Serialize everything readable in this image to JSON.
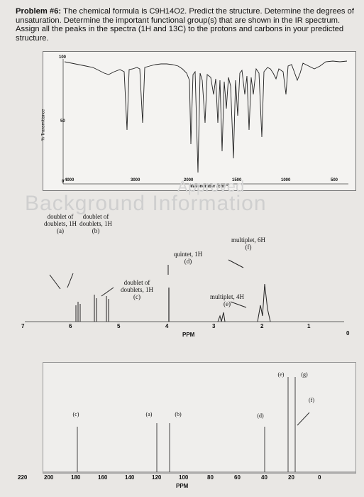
{
  "problem": {
    "label": "Problem #6:",
    "text": "The chemical formula is C9H14O2. Predict the structure. Determine the degrees of unsaturation. Determine the important functional group(s) that are shown in the IR spectrum. Assign all the peaks in the spectra (1H and 13C) to the protons and carbons in your predicted structure."
  },
  "ir": {
    "ylabel": "% Transmittance",
    "xlabel": "Wavenumber (cm⁻¹)",
    "yticks": [
      "100",
      "50",
      "0"
    ],
    "xticks": [
      "4000",
      "3000",
      "2000",
      "1500",
      "1000",
      "500"
    ]
  },
  "watermark": {
    "text": "Background Information",
    "sub": "Approved"
  },
  "hnmr": {
    "xlabel": "PPM",
    "ticks": [
      "7",
      "6",
      "5",
      "4",
      "3",
      "2",
      "1",
      "0"
    ],
    "peaks": [
      {
        "label": "doublet of doublets, 1H",
        "tag": "(a)"
      },
      {
        "label": "doublet of doublets, 1H",
        "tag": "(b)"
      },
      {
        "label": "doublet of doublets, 1H",
        "tag": "(c)"
      },
      {
        "label": "quintet, 1H",
        "tag": "(d)"
      },
      {
        "label": "multiplet, 4H",
        "tag": "(e)"
      },
      {
        "label": "multiplet, 6H",
        "tag": "(f)"
      }
    ]
  },
  "cnmr": {
    "xlabel": "PPM",
    "ticks": [
      "220",
      "200",
      "180",
      "160",
      "140",
      "120",
      "100",
      "80",
      "60",
      "40",
      "20",
      "0"
    ],
    "peaks": [
      {
        "tag": "(c)",
        "ppm": 197
      },
      {
        "tag": "(a)",
        "ppm": 141
      },
      {
        "tag": "(b)",
        "ppm": 121
      },
      {
        "tag": "(d)",
        "ppm": 53
      },
      {
        "tag": "(e)",
        "ppm": 34
      },
      {
        "tag": "(g)",
        "ppm": 24
      },
      {
        "tag": "(f)",
        "ppm": 22
      }
    ]
  }
}
